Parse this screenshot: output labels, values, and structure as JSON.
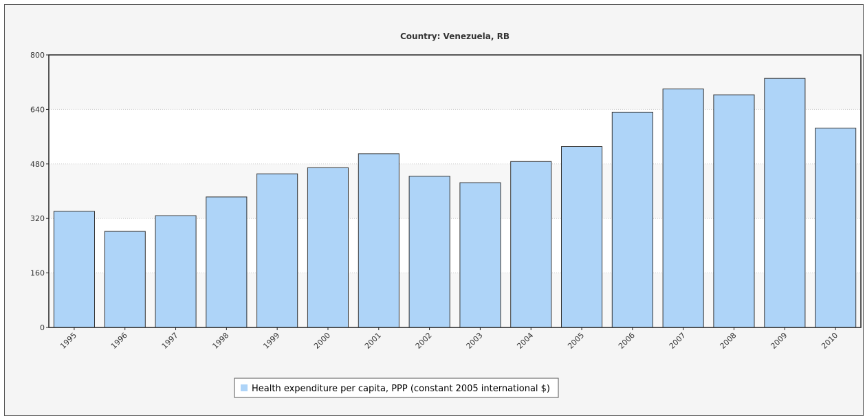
{
  "chart_data": {
    "type": "bar",
    "title": "Country: Venezuela, RB",
    "xlabel": "",
    "ylabel": "",
    "categories": [
      "1995",
      "1996",
      "1997",
      "1998",
      "1999",
      "2000",
      "2001",
      "2002",
      "2003",
      "2004",
      "2005",
      "2006",
      "2007",
      "2008",
      "2009",
      "2010"
    ],
    "series": [
      {
        "name": "Health expenditure per capita, PPP (constant 2005 international $)",
        "values": [
          341,
          282,
          328,
          383,
          451,
          469,
          510,
          444,
          425,
          487,
          531,
          632,
          700,
          683,
          731,
          585
        ]
      }
    ],
    "ylim": [
      0,
      800
    ],
    "yticks": [
      0,
      160,
      320,
      480,
      640,
      800
    ],
    "grid": true,
    "legend_position": "bottom-center",
    "colors": {
      "bar_fill": "#aed4f8",
      "bar_stroke": "#333333",
      "plot_bg": "#ffffff",
      "band_bg": "#f7f7f7",
      "frame_bg": "#f5f5f5",
      "grid": "#cccccc"
    }
  }
}
